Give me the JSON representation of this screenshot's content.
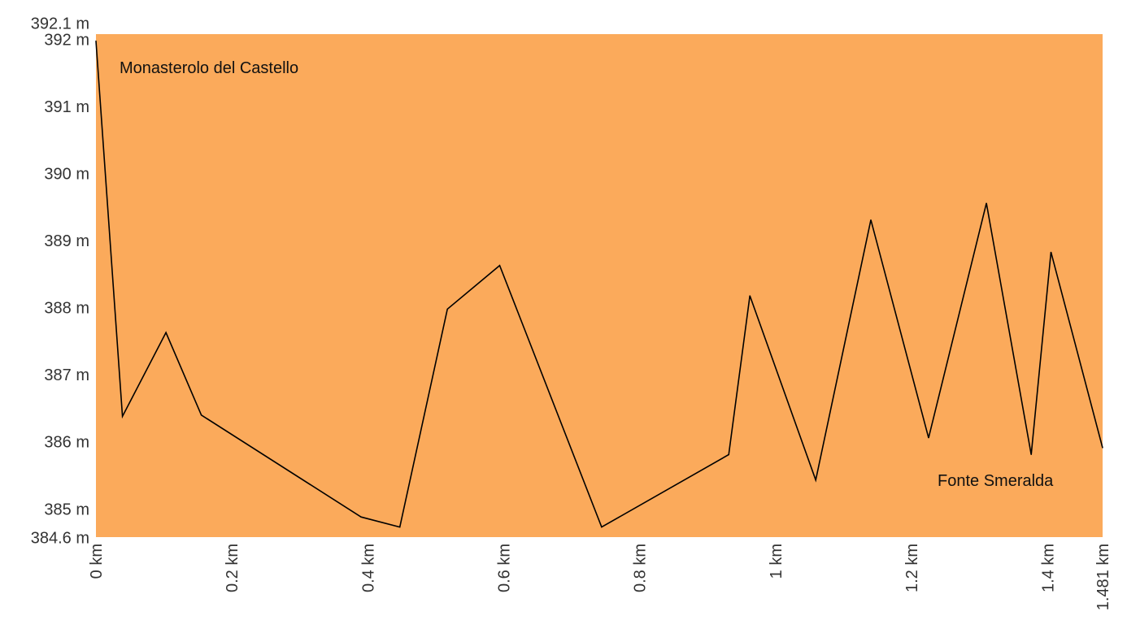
{
  "chart_data": {
    "type": "area",
    "colors": {
      "plot_background": "#fbaa5b",
      "line": "#000000"
    },
    "ylim": [
      384.6,
      392.1
    ],
    "xlim": [
      0,
      1.481
    ],
    "y_ticks": [
      {
        "value": 392.1,
        "label": "392.1 m"
      },
      {
        "value": 392,
        "label": "392 m"
      },
      {
        "value": 391,
        "label": "391 m"
      },
      {
        "value": 390,
        "label": "390 m"
      },
      {
        "value": 389,
        "label": "389 m"
      },
      {
        "value": 388,
        "label": "388 m"
      },
      {
        "value": 387,
        "label": "387 m"
      },
      {
        "value": 386,
        "label": "386 m"
      },
      {
        "value": 385,
        "label": "385 m"
      },
      {
        "value": 384.6,
        "label": "384.6 m"
      }
    ],
    "x_ticks": [
      {
        "value": 0,
        "label": "0 km"
      },
      {
        "value": 0.2,
        "label": "0.2 km"
      },
      {
        "value": 0.4,
        "label": "0.4 km"
      },
      {
        "value": 0.6,
        "label": "0.6 km"
      },
      {
        "value": 0.8,
        "label": "0.8 km"
      },
      {
        "value": 1,
        "label": "1 km"
      },
      {
        "value": 1.2,
        "label": "1.2 km"
      },
      {
        "value": 1.4,
        "label": "1.4 km"
      },
      {
        "value": 1.481,
        "label": "1.481 km"
      }
    ],
    "series": [
      {
        "x": [
          0,
          0.039,
          0.103,
          0.155,
          0.39,
          0.447,
          0.517,
          0.594,
          0.744,
          0.931,
          0.962,
          1.059,
          1.14,
          1.225,
          1.31,
          1.376,
          1.405,
          1.481
        ],
        "y": [
          392.0,
          386.4,
          387.65,
          386.42,
          384.9,
          384.75,
          388.0,
          388.65,
          384.75,
          385.83,
          388.2,
          385.45,
          389.33,
          386.08,
          389.58,
          385.83,
          388.85,
          385.93
        ]
      }
    ],
    "annotations": [
      {
        "label": "Monasterolo del Castello"
      },
      {
        "label": "Fonte Smeralda"
      }
    ]
  }
}
